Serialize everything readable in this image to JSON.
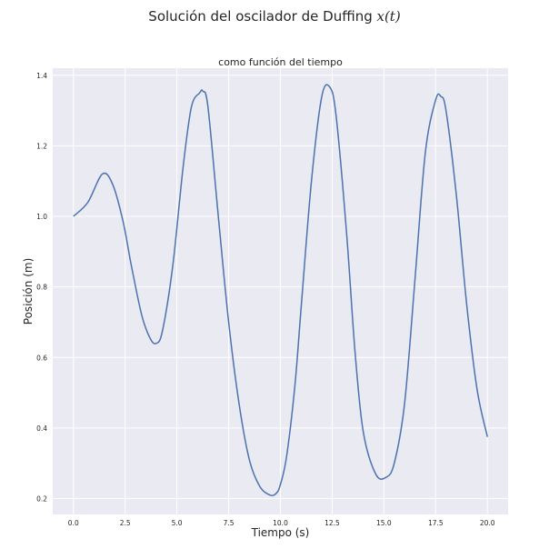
{
  "figure": {
    "suptitle_prefix": "Solución del oscilador de Duffing ",
    "suptitle_symbol": "x(t)"
  },
  "chart_data": {
    "type": "line",
    "title": "como función del tiempo",
    "xlabel": "Tiempo (s)",
    "ylabel": "Posición (m)",
    "xlim": [
      -1.0,
      21.0
    ],
    "ylim": [
      0.155,
      1.42
    ],
    "xticks": [
      0.0,
      2.5,
      5.0,
      7.5,
      10.0,
      12.5,
      15.0,
      17.5,
      20.0
    ],
    "xtick_labels": [
      "0.0",
      "2.5",
      "5.0",
      "7.5",
      "10.0",
      "12.5",
      "15.0",
      "17.5",
      "20.0"
    ],
    "yticks": [
      0.2,
      0.4,
      0.6,
      0.8,
      1.0,
      1.2,
      1.4
    ],
    "ytick_labels": [
      "0.2",
      "0.4",
      "0.6",
      "0.8",
      "1.0",
      "1.2",
      "1.4"
    ],
    "grid": true,
    "series": [
      {
        "color": "#4c72b0",
        "x": [
          0.0,
          0.7,
          1.4,
          1.9,
          2.4,
          2.8,
          3.3,
          3.7,
          4.0,
          4.3,
          4.8,
          5.3,
          5.7,
          6.1,
          6.25,
          6.5,
          7.0,
          7.5,
          8.0,
          8.5,
          9.0,
          9.5,
          9.8,
          10.0,
          10.3,
          10.7,
          11.0,
          11.5,
          12.0,
          12.4,
          12.7,
          13.2,
          13.6,
          14.0,
          14.6,
          15.1,
          15.5,
          16.0,
          16.5,
          17.0,
          17.5,
          17.75,
          18.0,
          18.5,
          19.0,
          19.5,
          20.0
        ],
        "y": [
          1.0,
          1.04,
          1.12,
          1.09,
          0.985,
          0.86,
          0.72,
          0.655,
          0.64,
          0.675,
          0.86,
          1.14,
          1.31,
          1.35,
          1.355,
          1.31,
          1.0,
          0.7,
          0.47,
          0.31,
          0.235,
          0.21,
          0.215,
          0.24,
          0.32,
          0.52,
          0.74,
          1.1,
          1.34,
          1.365,
          1.28,
          0.95,
          0.62,
          0.39,
          0.27,
          0.26,
          0.3,
          0.47,
          0.82,
          1.18,
          1.33,
          1.34,
          1.3,
          1.06,
          0.75,
          0.51,
          0.375
        ]
      }
    ]
  }
}
